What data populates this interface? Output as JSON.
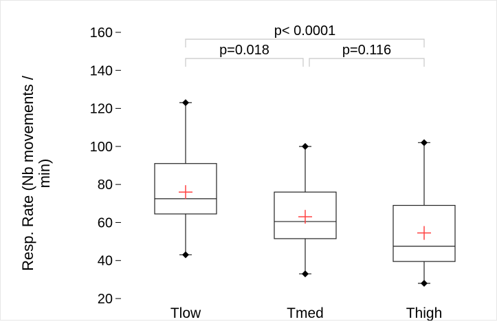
{
  "chart_data": {
    "type": "boxplot",
    "ylabel_line1": "Resp. Rate (Nb movements /",
    "ylabel_line2": "min)",
    "ylim": [
      20,
      160
    ],
    "yticks": [
      "20",
      "40",
      "60",
      "80",
      "100",
      "120",
      "140",
      "160"
    ],
    "categories": [
      "Tlow",
      "Tmed",
      "Thigh"
    ],
    "boxes": [
      {
        "category": "Tlow",
        "min": 43,
        "q1": 64.5,
        "median": 72.5,
        "q3": 91,
        "max": 123,
        "mean": 76
      },
      {
        "category": "Tmed",
        "min": 33,
        "q1": 51.5,
        "median": 60.5,
        "q3": 76,
        "max": 100,
        "mean": 63
      },
      {
        "category": "Thigh",
        "min": 28,
        "q1": 39.5,
        "median": 47.5,
        "q3": 69,
        "max": 102,
        "mean": 54.5
      }
    ],
    "comparisons": [
      {
        "from": "Tlow",
        "to": "Tmed",
        "label": "p=0.018",
        "level": 1
      },
      {
        "from": "Tmed",
        "to": "Thigh",
        "label": "p=0.116",
        "level": 1
      },
      {
        "from": "Tlow",
        "to": "Thigh",
        "label": "p< 0.0001",
        "level": 2
      }
    ],
    "colors": {
      "box": "#222222",
      "mean_marker": "#ff4040",
      "bracket": "#c8c8c8",
      "whisker_cap": "#000000"
    },
    "grid": false
  }
}
